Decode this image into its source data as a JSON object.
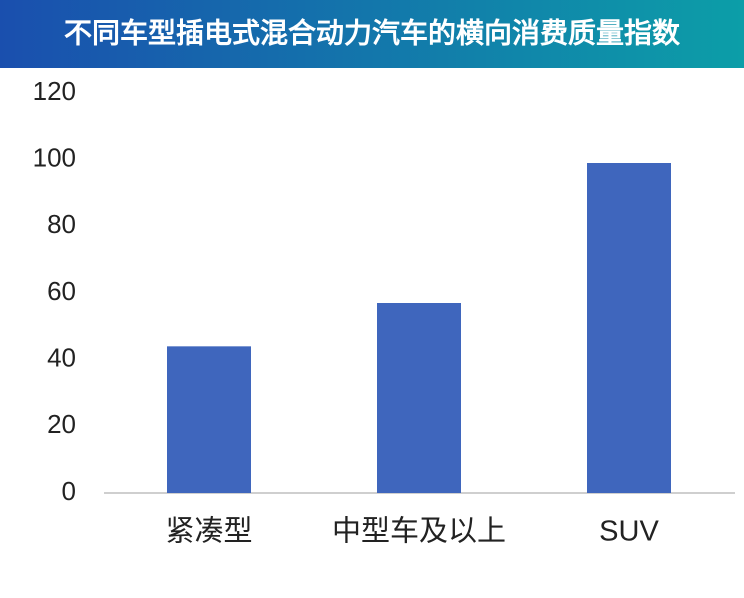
{
  "chart_data": {
    "type": "bar",
    "title": "不同车型插电式混合动力汽车的横向消费质量指数",
    "categories": [
      "紧凑型",
      "中型车及以上",
      "SUV"
    ],
    "values": [
      44,
      57,
      99
    ],
    "color": "#3f66bd",
    "ylim": [
      0,
      120
    ],
    "yticks": [
      0,
      20,
      40,
      60,
      80,
      100,
      120
    ],
    "grid": false
  }
}
